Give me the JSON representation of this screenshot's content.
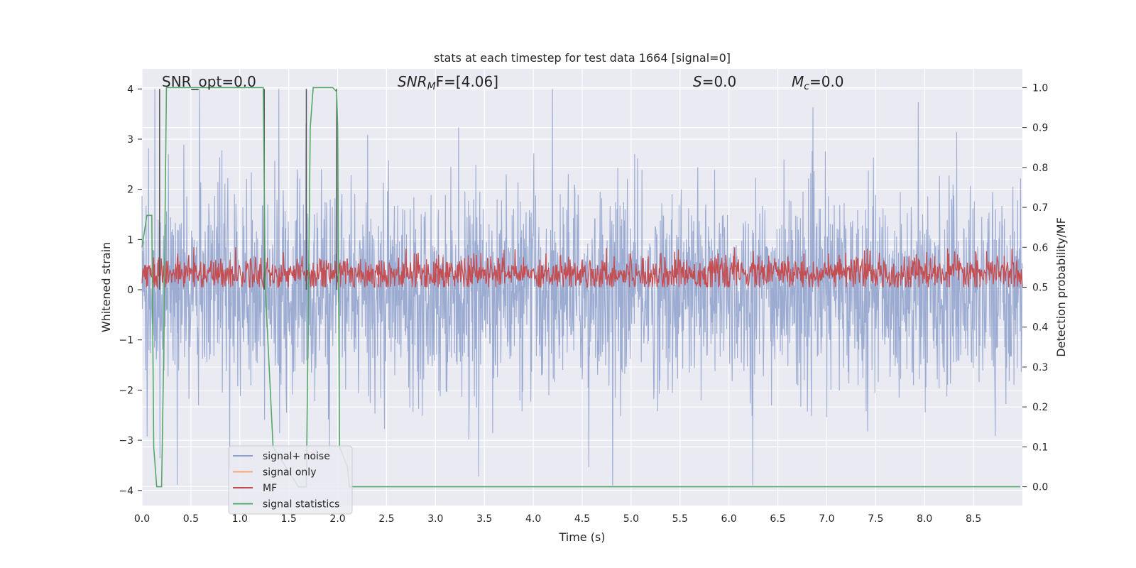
{
  "chart_data": {
    "type": "line",
    "title": "stats at each timestep for test data 1664 [signal=0]",
    "xlabel": "Time (s)",
    "ylabel": "Whitened strain",
    "y2label": "Detection probability/MF",
    "xlim": [
      0,
      9.0
    ],
    "ylim": [
      -4.3,
      4.4
    ],
    "y2lim": [
      -0.047,
      1.047
    ],
    "x_ticks": [
      "0.0",
      "0.5",
      "1.0",
      "1.5",
      "2.0",
      "2.5",
      "3.0",
      "3.5",
      "4.0",
      "4.5",
      "5.0",
      "5.5",
      "6.0",
      "6.5",
      "7.0",
      "7.5",
      "8.0",
      "8.5"
    ],
    "y_ticks": [
      "4",
      "3",
      "2",
      "1",
      "0",
      "−1",
      "−2",
      "−3",
      "−4"
    ],
    "y2_ticks": [
      "1.0",
      "0.9",
      "0.8",
      "0.7",
      "0.6",
      "0.5",
      "0.4",
      "0.3",
      "0.2",
      "0.1",
      "0.0"
    ],
    "grid": true,
    "legend_position": "lower-left",
    "annotations": [
      {
        "text": "SNR_opt=0.0",
        "x": 0.2,
        "y": 4.15
      },
      {
        "text": "SNR_MF=[4.06]",
        "x": 2.6,
        "y": 4.15
      },
      {
        "text": "S=0.0",
        "x": 5.6,
        "y": 4.15
      },
      {
        "text": "M_c=0.0",
        "x": 6.6,
        "y": 4.15
      }
    ],
    "series": [
      {
        "name": "signal+ noise",
        "color": "#8da0cb",
        "axis": "left",
        "description": "noise trace, roughly symmetric about 0, typical amplitude ±1.5 with peaks up to 4.0 and down to -3.9"
      },
      {
        "name": "signal only",
        "color": "#f4a582",
        "axis": "left",
        "values": []
      },
      {
        "name": "MF",
        "color": "#c44e52",
        "axis": "right",
        "description": "matched filter output fluctuating between 0.5 and 0.6 across the whole segment"
      },
      {
        "name": "signal statistics",
        "color": "#55a868",
        "axis": "right",
        "x": [
          0.0,
          0.05,
          0.1,
          0.12,
          0.15,
          0.18,
          0.2,
          0.22,
          0.25,
          0.3,
          1.0,
          1.24,
          1.26,
          1.3,
          1.34,
          1.6,
          1.68,
          1.72,
          1.75,
          1.8,
          1.95,
          1.99,
          2.0,
          2.02,
          2.1,
          2.12,
          8.98
        ],
        "values": [
          0.6,
          0.68,
          0.68,
          0.1,
          0.0,
          0.0,
          0.0,
          0.3,
          1.0,
          1.0,
          1.0,
          1.0,
          0.5,
          0.3,
          0.1,
          0.0,
          0.0,
          0.9,
          1.0,
          1.0,
          1.0,
          0.99,
          0.9,
          0.1,
          0.05,
          0.0,
          0.0
        ]
      }
    ],
    "vertical_lines": [
      0.18,
      1.25,
      1.68,
      1.99
    ]
  }
}
